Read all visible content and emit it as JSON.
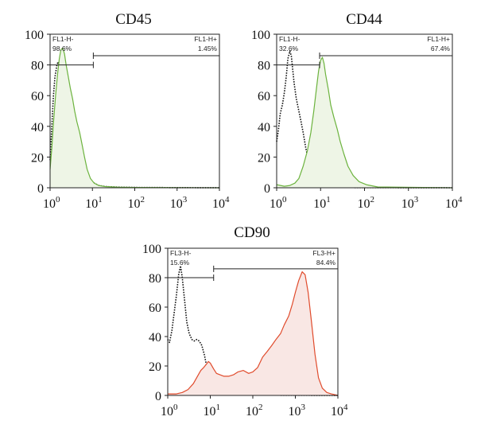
{
  "chart_data": [
    {
      "type": "area",
      "title": "CD45",
      "x_scale": "log",
      "xlim": [
        1,
        10000
      ],
      "ylim": [
        0,
        100
      ],
      "x_ticks": [
        "10",
        "10",
        "10",
        "10",
        "10"
      ],
      "x_tick_exponents": [
        "0",
        "1",
        "2",
        "3",
        "4"
      ],
      "y_ticks": [
        "0",
        "20",
        "40",
        "60",
        "80",
        "100"
      ],
      "gates": [
        {
          "name": "FL1-H-",
          "percent": "98.6%",
          "range": [
            1,
            10.5
          ]
        },
        {
          "name": "FL1-H+",
          "percent": "1.45%",
          "range": [
            10.5,
            10000
          ]
        }
      ],
      "series": [
        {
          "style": "dotted",
          "color": "#111111",
          "x": [
            1,
            1.1,
            1.2,
            1.3,
            1.45,
            1.55,
            1.7,
            1.85,
            2.0,
            2.2,
            2.4,
            2.7,
            3.0,
            3.5,
            4.0,
            4.7,
            5.5,
            6.5,
            7.5,
            9.0,
            11,
            14,
            20,
            40,
            100,
            10000
          ],
          "y": [
            18,
            40,
            60,
            72,
            80,
            82,
            79,
            76,
            70,
            64,
            56,
            47,
            40,
            32,
            27,
            22,
            17,
            13,
            9,
            5,
            3,
            1.5,
            0.8,
            0.4,
            0.2,
            0
          ]
        },
        {
          "style": "filled",
          "color": "#6cb33e",
          "fill": "#eef5e6",
          "x": [
            1,
            1.1,
            1.2,
            1.35,
            1.5,
            1.65,
            1.8,
            2.0,
            2.2,
            2.4,
            2.7,
            3.0,
            3.4,
            3.8,
            4.3,
            5.0,
            5.7,
            6.5,
            7.5,
            9.0,
            11,
            14,
            20,
            40,
            100,
            10000
          ],
          "y": [
            12,
            26,
            42,
            60,
            74,
            84,
            90,
            91,
            87,
            80,
            72,
            65,
            58,
            50,
            43,
            36,
            28,
            20,
            12,
            6,
            3,
            1.5,
            0.8,
            0.4,
            0.2,
            0
          ]
        }
      ]
    },
    {
      "type": "area",
      "title": "CD44",
      "x_scale": "log",
      "xlim": [
        1,
        10000
      ],
      "ylim": [
        0,
        100
      ],
      "x_ticks": [
        "10",
        "10",
        "10",
        "10",
        "10"
      ],
      "x_tick_exponents": [
        "0",
        "1",
        "2",
        "3",
        "4"
      ],
      "y_ticks": [
        "0",
        "20",
        "40",
        "60",
        "80",
        "100"
      ],
      "gates": [
        {
          "name": "FL1-H-",
          "percent": "32.6%",
          "range": [
            1,
            9.5
          ]
        },
        {
          "name": "FL1-H+",
          "percent": "67.4%",
          "range": [
            9.5,
            10000
          ]
        }
      ],
      "series": [
        {
          "style": "dotted",
          "color": "#111111",
          "x": [
            1,
            1.1,
            1.2,
            1.35,
            1.5,
            1.65,
            1.8,
            2.0,
            2.15,
            2.3,
            2.5,
            2.8,
            3.2,
            3.6,
            4.0,
            4.6,
            5.3,
            6.2,
            7.0,
            8.0,
            9.5,
            12,
            16,
            25,
            60,
            10000
          ],
          "y": [
            30,
            38,
            48,
            54,
            62,
            72,
            84,
            89,
            86,
            78,
            68,
            58,
            50,
            43,
            36,
            26,
            18,
            11,
            7,
            4,
            2.5,
            1.5,
            0.8,
            0.4,
            0.1,
            0
          ]
        },
        {
          "style": "filled",
          "color": "#6cb33e",
          "fill": "#eef5e6",
          "x": [
            1,
            1.5,
            2.0,
            2.6,
            3.2,
            4.0,
            5.0,
            6.0,
            7.0,
            8.0,
            9.0,
            10,
            11,
            12,
            13,
            15,
            17,
            20,
            24,
            28,
            34,
            42,
            55,
            75,
            110,
            200,
            10000
          ],
          "y": [
            2,
            1,
            1.5,
            3,
            6,
            14,
            24,
            36,
            50,
            64,
            76,
            83,
            85,
            81,
            74,
            64,
            54,
            46,
            38,
            30,
            22,
            14,
            8,
            4,
            2,
            0.5,
            0
          ]
        }
      ]
    },
    {
      "type": "area",
      "title": "CD90",
      "x_scale": "log",
      "xlim": [
        1,
        10000
      ],
      "ylim": [
        0,
        100
      ],
      "x_ticks": [
        "10",
        "10",
        "10",
        "10",
        "10"
      ],
      "x_tick_exponents": [
        "0",
        "1",
        "2",
        "3",
        "4"
      ],
      "y_ticks": [
        "0",
        "20",
        "40",
        "60",
        "80",
        "100"
      ],
      "gates": [
        {
          "name": "FL3-H-",
          "percent": "15.6%",
          "range": [
            1,
            12
          ]
        },
        {
          "name": "FL3-H+",
          "percent": "84.4%",
          "range": [
            12,
            10000
          ]
        }
      ],
      "series": [
        {
          "style": "dotted",
          "color": "#111111",
          "x": [
            1,
            1.1,
            1.25,
            1.4,
            1.6,
            1.8,
            2.0,
            2.2,
            2.5,
            2.8,
            3.2,
            3.7,
            4.2,
            4.8,
            5.5,
            6.3,
            7.2,
            8.2,
            9.5,
            11,
            13,
            16,
            20,
            28,
            50,
            10000
          ],
          "y": [
            38,
            36,
            44,
            55,
            68,
            82,
            88,
            80,
            64,
            50,
            42,
            38,
            37,
            38,
            37,
            34,
            28,
            20,
            12,
            7,
            4,
            2,
            1,
            0.5,
            0.2,
            0
          ]
        },
        {
          "style": "filled",
          "color": "#e04b2c",
          "fill": "#f9e7e4",
          "x": [
            1,
            1.6,
            2.2,
            3.0,
            4.0,
            5.0,
            6.0,
            7.0,
            8.0,
            9.0,
            10,
            12,
            14,
            17,
            21,
            27,
            35,
            45,
            60,
            80,
            100,
            130,
            170,
            220,
            280,
            350,
            450,
            550,
            700,
            850,
            1000,
            1200,
            1450,
            1700,
            2000,
            2400,
            2900,
            3500,
            4300,
            5500,
            7000,
            10000
          ],
          "y": [
            1,
            1,
            2,
            4,
            8,
            13,
            17,
            19,
            21,
            23,
            22,
            18,
            15,
            14,
            13,
            13,
            14,
            16,
            17,
            15,
            16,
            19,
            26,
            30,
            34,
            38,
            42,
            48,
            54,
            62,
            70,
            78,
            84,
            82,
            70,
            50,
            28,
            12,
            5,
            2,
            1,
            0
          ]
        }
      ]
    }
  ]
}
